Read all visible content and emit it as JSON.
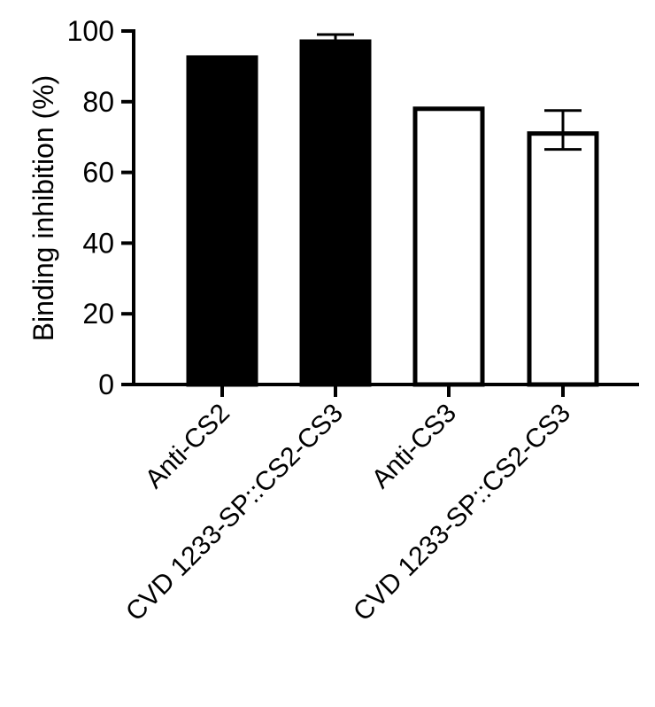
{
  "chart_data": {
    "type": "bar",
    "categories": [
      "Anti-CS2",
      "CVD 1233-SP::CS2-CS3",
      "Anti-CS3",
      "CVD 1233-SP::CS2-CS3"
    ],
    "values": [
      93,
      97.5,
      78.5,
      71.5
    ],
    "error": [
      [
        0,
        0
      ],
      [
        0.5,
        1.5
      ],
      [
        0,
        0
      ],
      [
        5,
        6
      ]
    ],
    "bar_fill": [
      "#000000",
      "#000000",
      "#ffffff",
      "#ffffff"
    ],
    "bar_stroke": "#000000",
    "ylabel": "Binding inhibition (%)",
    "xlabel": "",
    "title": "",
    "ylim": [
      0,
      100
    ],
    "yticks": [
      0,
      20,
      40,
      60,
      80,
      100
    ],
    "grid": false,
    "legend": "none"
  }
}
